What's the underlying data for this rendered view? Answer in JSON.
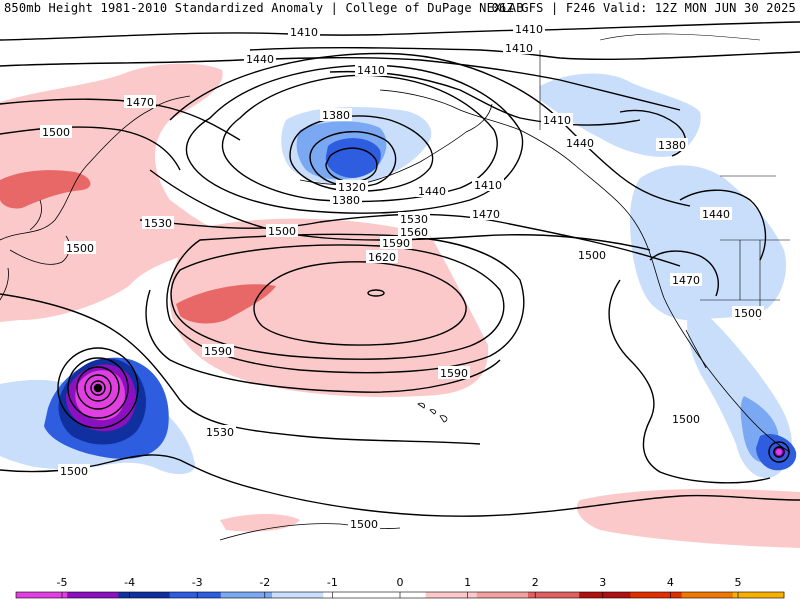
{
  "header": {
    "left_title": "850mb Height 1981-2010 Standardized Anomaly | College of DuPage NEXLAB",
    "right_title": "06Z GFS | F246 Valid: 12Z MON JUN 30 2025"
  },
  "map": {
    "contour_labels": [
      "1410",
      "1410",
      "1410",
      "1410",
      "1410",
      "1410",
      "1440",
      "1440",
      "1440",
      "1440",
      "1470",
      "1470",
      "1470",
      "1500",
      "1500",
      "1500",
      "1500",
      "1500",
      "1500",
      "1500",
      "1500",
      "1380",
      "1380",
      "1380",
      "1320",
      "1530",
      "1530",
      "1530",
      "1560",
      "1590",
      "1590",
      "1590",
      "1620"
    ]
  },
  "legend": {
    "ticks": [
      "-5",
      "-4",
      "-3",
      "-2",
      "-1",
      "0",
      "1",
      "2",
      "3",
      "4",
      "5"
    ],
    "colors": [
      "#e040e0",
      "#8a10c0",
      "#1030a0",
      "#2e5de0",
      "#7aa8f2",
      "#c9defa",
      "#ffffff",
      "#ffffff",
      "#fbc9c9",
      "#f2a0a0",
      "#e06060",
      "#b01010",
      "#e03000",
      "#f07800",
      "#f8b000"
    ]
  }
}
